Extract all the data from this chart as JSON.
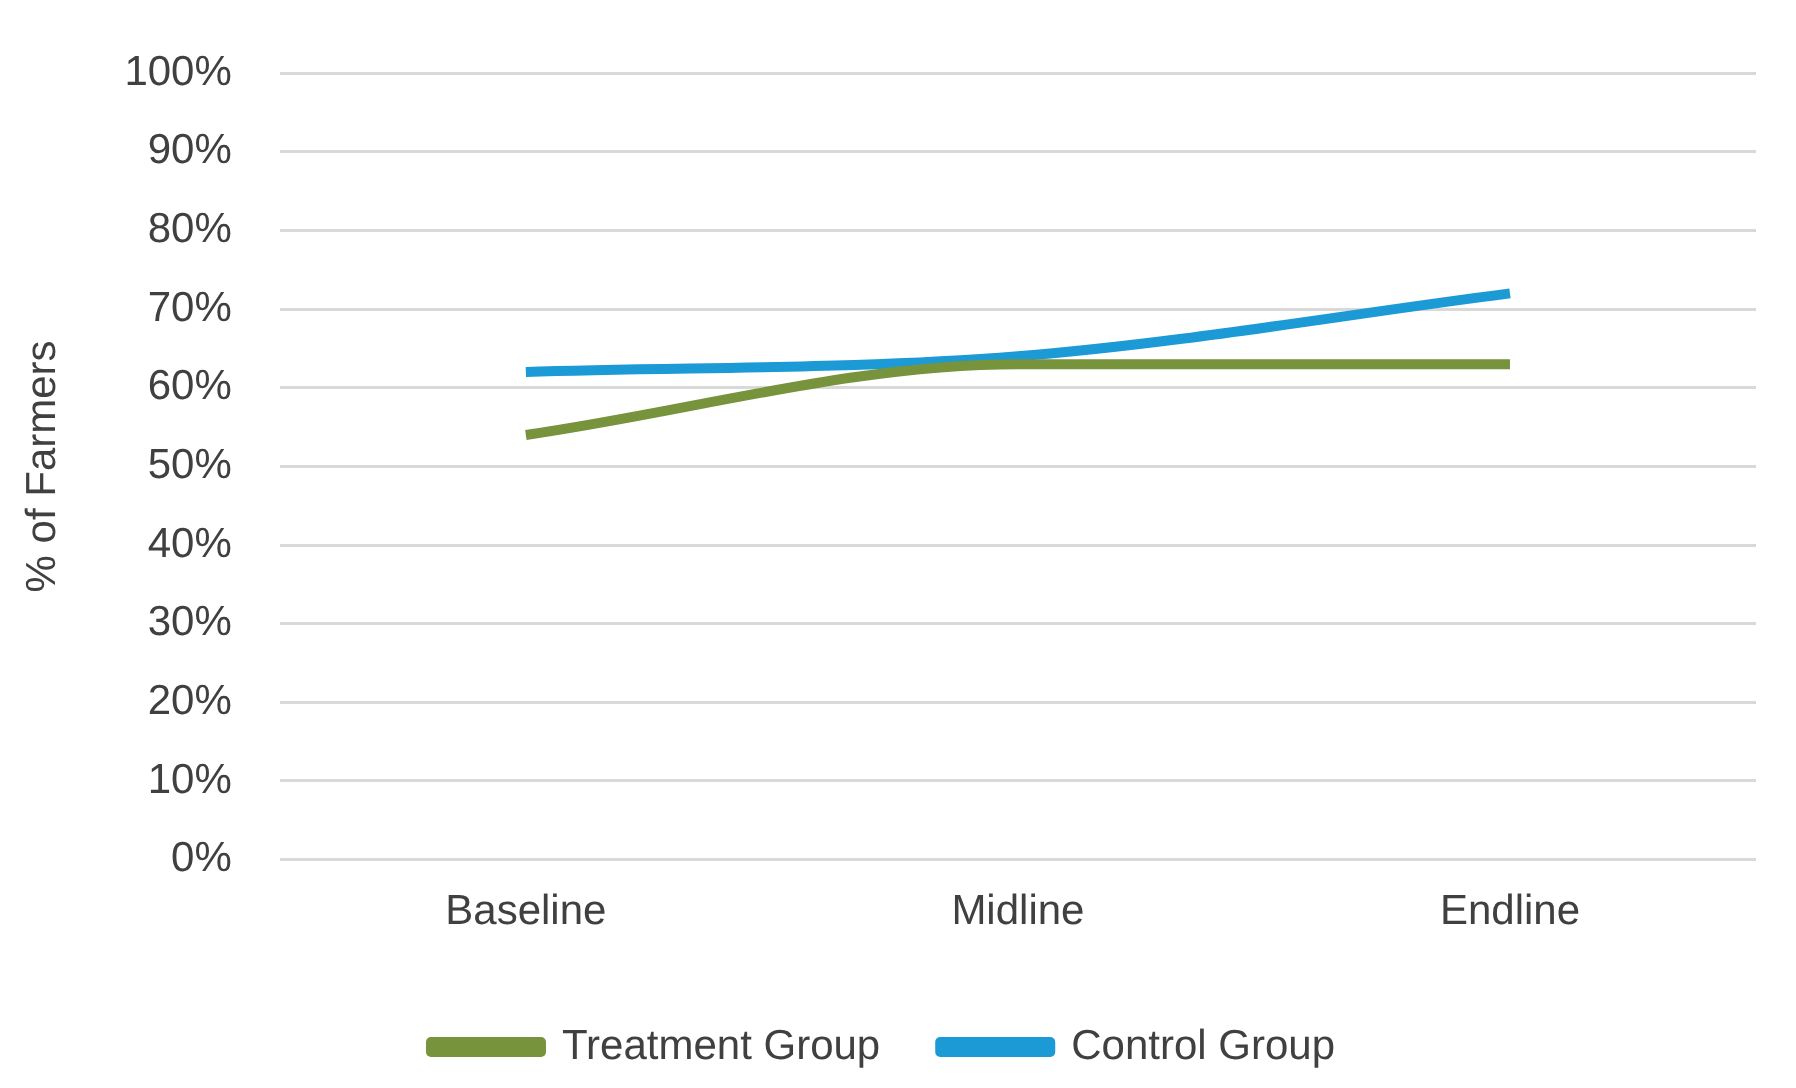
{
  "chart_data": {
    "type": "line",
    "ylabel": "% of Farmers",
    "categories": [
      "Baseline",
      "Midline",
      "Endline"
    ],
    "series": [
      {
        "name": "Treatment Group",
        "color": "#77933c",
        "values": [
          54,
          63,
          63
        ]
      },
      {
        "name": "Control Group",
        "color": "#1b9ad6",
        "values": [
          62,
          64,
          72
        ]
      }
    ],
    "ylim": [
      0,
      100
    ],
    "yticks": [
      {
        "value": 0,
        "label": "0%"
      },
      {
        "value": 10,
        "label": "10%"
      },
      {
        "value": 20,
        "label": "20%"
      },
      {
        "value": 30,
        "label": "30%"
      },
      {
        "value": 40,
        "label": "40%"
      },
      {
        "value": 50,
        "label": "50%"
      },
      {
        "value": 60,
        "label": "60%"
      },
      {
        "value": 70,
        "label": "70%"
      },
      {
        "value": 80,
        "label": "80%"
      },
      {
        "value": 90,
        "label": "90%"
      },
      {
        "value": 100,
        "label": "100%"
      }
    ],
    "grid": "y",
    "legend": "bottom",
    "marker": "none",
    "line_style": "solid"
  }
}
